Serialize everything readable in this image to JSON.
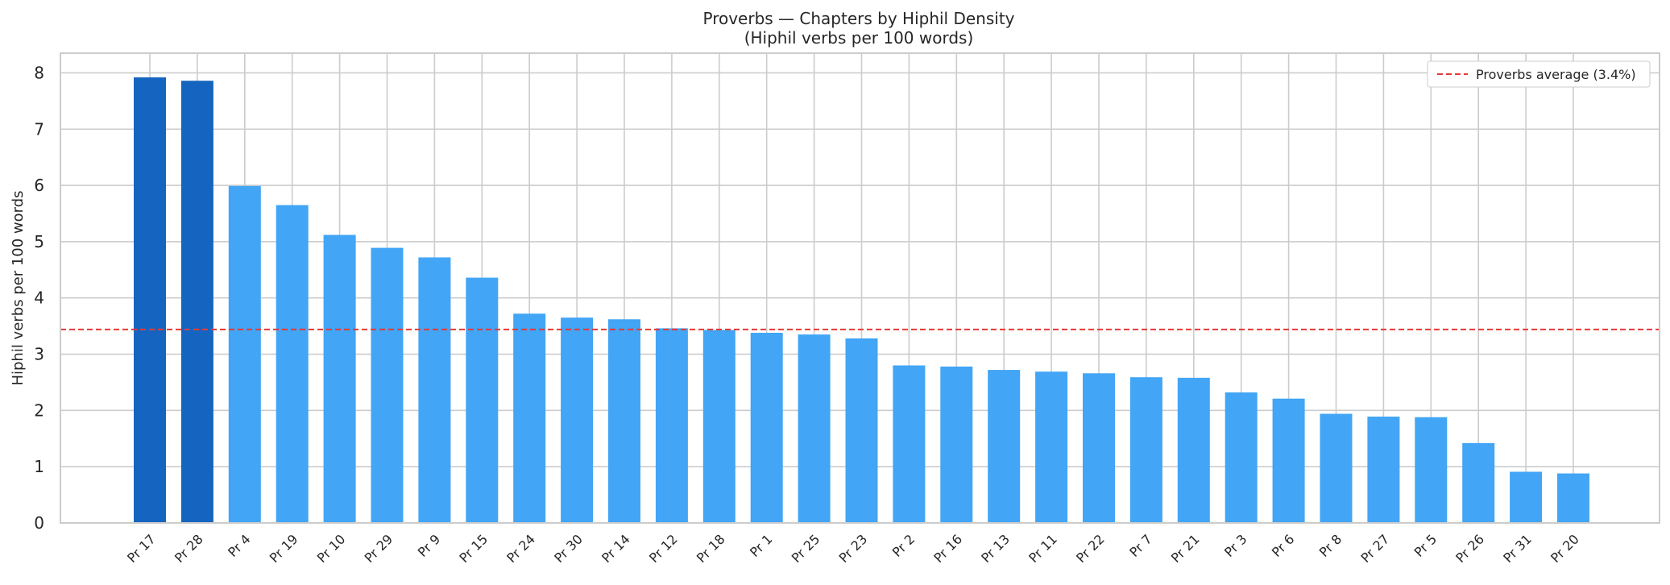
{
  "chart_data": {
    "type": "bar",
    "title": "Proverbs — Chapters by Hiphil Density",
    "subtitle": "(Hiphil verbs per 100 words)",
    "xlabel": "",
    "ylabel": "Hiphil verbs per 100 words",
    "ylim": [
      0,
      8.35
    ],
    "yticks": [
      0,
      1,
      2,
      3,
      4,
      5,
      6,
      7,
      8
    ],
    "grid": true,
    "categories": [
      "Pr 17",
      "Pr 28",
      "Pr 4",
      "Pr 19",
      "Pr 10",
      "Pr 29",
      "Pr 9",
      "Pr 15",
      "Pr 24",
      "Pr 30",
      "Pr 14",
      "Pr 12",
      "Pr 18",
      "Pr 1",
      "Pr 25",
      "Pr 23",
      "Pr 2",
      "Pr 16",
      "Pr 13",
      "Pr 11",
      "Pr 22",
      "Pr 7",
      "Pr 21",
      "Pr 3",
      "Pr 6",
      "Pr 8",
      "Pr 27",
      "Pr 5",
      "Pr 26",
      "Pr 31",
      "Pr 20"
    ],
    "values": [
      7.92,
      7.86,
      5.99,
      5.65,
      5.12,
      4.89,
      4.72,
      4.36,
      3.72,
      3.65,
      3.62,
      3.46,
      3.43,
      3.38,
      3.35,
      3.28,
      2.8,
      2.78,
      2.72,
      2.69,
      2.66,
      2.59,
      2.58,
      2.32,
      2.21,
      1.94,
      1.89,
      1.88,
      1.42,
      0.91,
      0.88
    ],
    "highlighted": [
      "Pr 17",
      "Pr 28"
    ],
    "reference_line": {
      "value": 3.44,
      "label": "Proverbs average (3.4%)",
      "style": "dashed"
    },
    "legend": {
      "placement": "top-right",
      "entries": [
        "Proverbs average (3.4%)"
      ]
    },
    "colors": {
      "bar": "#42a5f5",
      "highlight": "#1565c0",
      "average_line": "#e53935",
      "grid": "#cccccc",
      "spine": "#cccccc"
    }
  }
}
